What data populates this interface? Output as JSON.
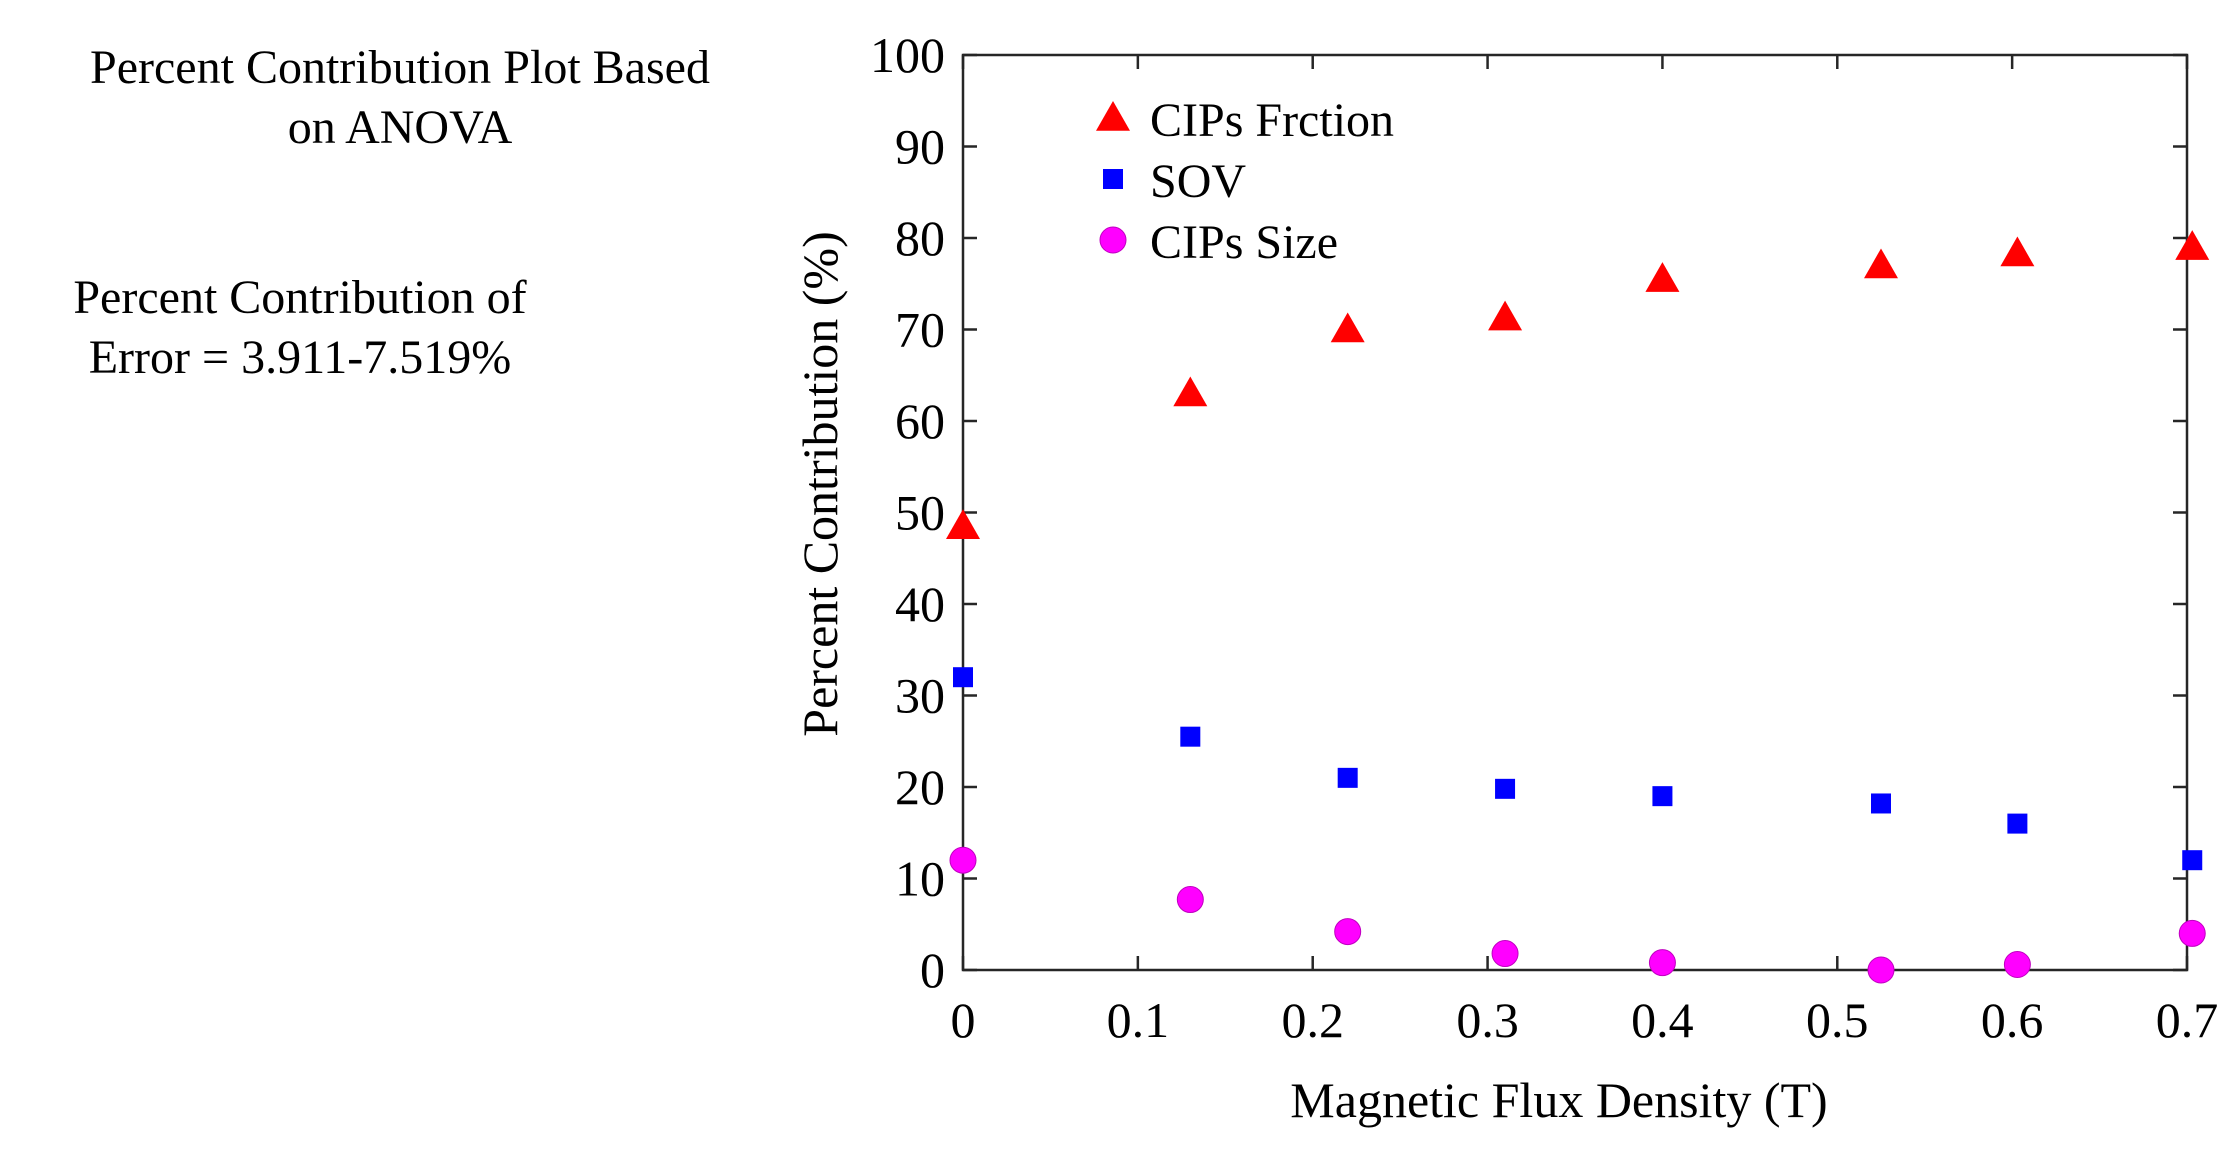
{
  "side_text": {
    "title_line1": "Percent Contribution Plot Based",
    "title_line2": "on ANOVA",
    "error_line1": "Percent Contribution of",
    "error_line2": "Error = 3.911-7.519%"
  },
  "chart_data": {
    "type": "scatter",
    "title": "",
    "xlabel": "Magnetic Flux Density (T)",
    "ylabel": "Percent Contribution (%)",
    "xlim": [
      0,
      0.7
    ],
    "ylim": [
      0,
      100
    ],
    "xticks": [
      0,
      0.1,
      0.2,
      0.3,
      0.4,
      0.5,
      0.6,
      0.7
    ],
    "xtick_labels": [
      "0",
      "0.1",
      "0.2",
      "0.3",
      "0.4",
      "0.5",
      "0.6",
      "0.7"
    ],
    "yticks": [
      0,
      10,
      20,
      30,
      40,
      50,
      60,
      70,
      80,
      90,
      100
    ],
    "ytick_labels": [
      "0",
      "10",
      "20",
      "30",
      "40",
      "50",
      "60",
      "70",
      "80",
      "90",
      "100"
    ],
    "grid": false,
    "legend_position": "top-left",
    "x": [
      0,
      0.13,
      0.22,
      0.31,
      0.4,
      0.525,
      0.603,
      0.703
    ],
    "series": [
      {
        "name": "CIPs Frction",
        "marker": "triangle",
        "color": "#ff0000",
        "values": [
          48.5,
          63.0,
          70.0,
          71.3,
          75.5,
          77.0,
          78.3,
          79.0
        ]
      },
      {
        "name": "SOV",
        "marker": "square",
        "color": "#0000ff",
        "values": [
          32.0,
          25.5,
          21.0,
          19.8,
          19.0,
          18.2,
          16.0,
          12.0
        ]
      },
      {
        "name": "CIPs Size",
        "marker": "circle",
        "color": "#ff00ff",
        "values": [
          12.0,
          7.7,
          4.2,
          1.8,
          0.8,
          0.0,
          0.6,
          4.0
        ]
      }
    ]
  }
}
